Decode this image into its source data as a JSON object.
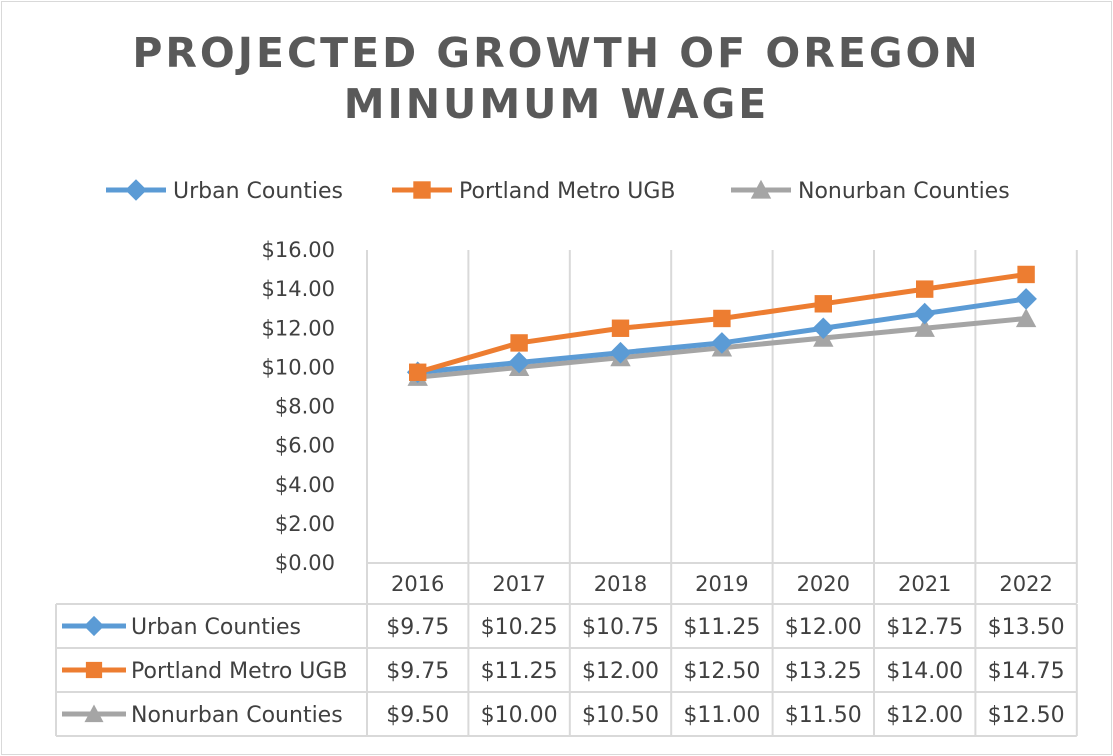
{
  "chart_data": {
    "type": "line",
    "title": "PROJECTED GROWTH OF OREGON MINUMUM WAGE",
    "title_lines": [
      "PROJECTED GROWTH OF OREGON",
      "MINUMUM WAGE"
    ],
    "categories": [
      "2016",
      "2017",
      "2018",
      "2019",
      "2020",
      "2021",
      "2022"
    ],
    "ylim": [
      0,
      16
    ],
    "yticks": [
      "$0.00",
      "$2.00",
      "$4.00",
      "$6.00",
      "$8.00",
      "$10.00",
      "$12.00",
      "$14.00",
      "$16.00"
    ],
    "grid": "vertical",
    "legend": "top",
    "data_table": true,
    "series": [
      {
        "name": "Urban Counties",
        "values": [
          9.75,
          10.25,
          10.75,
          11.25,
          12.0,
          12.75,
          13.5
        ],
        "labels": [
          "$9.75",
          "$10.25",
          "$10.75",
          "$11.25",
          "$12.00",
          "$12.75",
          "$13.50"
        ],
        "color": "#5b9bd5",
        "marker": "diamond"
      },
      {
        "name": "Portland Metro UGB",
        "values": [
          9.75,
          11.25,
          12.0,
          12.5,
          13.25,
          14.0,
          14.75
        ],
        "labels": [
          "$9.75",
          "$11.25",
          "$12.00",
          "$12.50",
          "$13.25",
          "$14.00",
          "$14.75"
        ],
        "color": "#ed7d31",
        "marker": "square"
      },
      {
        "name": "Nonurban Counties",
        "values": [
          9.5,
          10.0,
          10.5,
          11.0,
          11.5,
          12.0,
          12.5
        ],
        "labels": [
          "$9.50",
          "$10.00",
          "$10.50",
          "$11.00",
          "$11.50",
          "$12.00",
          "$12.50"
        ],
        "color": "#a5a5a5",
        "marker": "triangle"
      }
    ]
  }
}
